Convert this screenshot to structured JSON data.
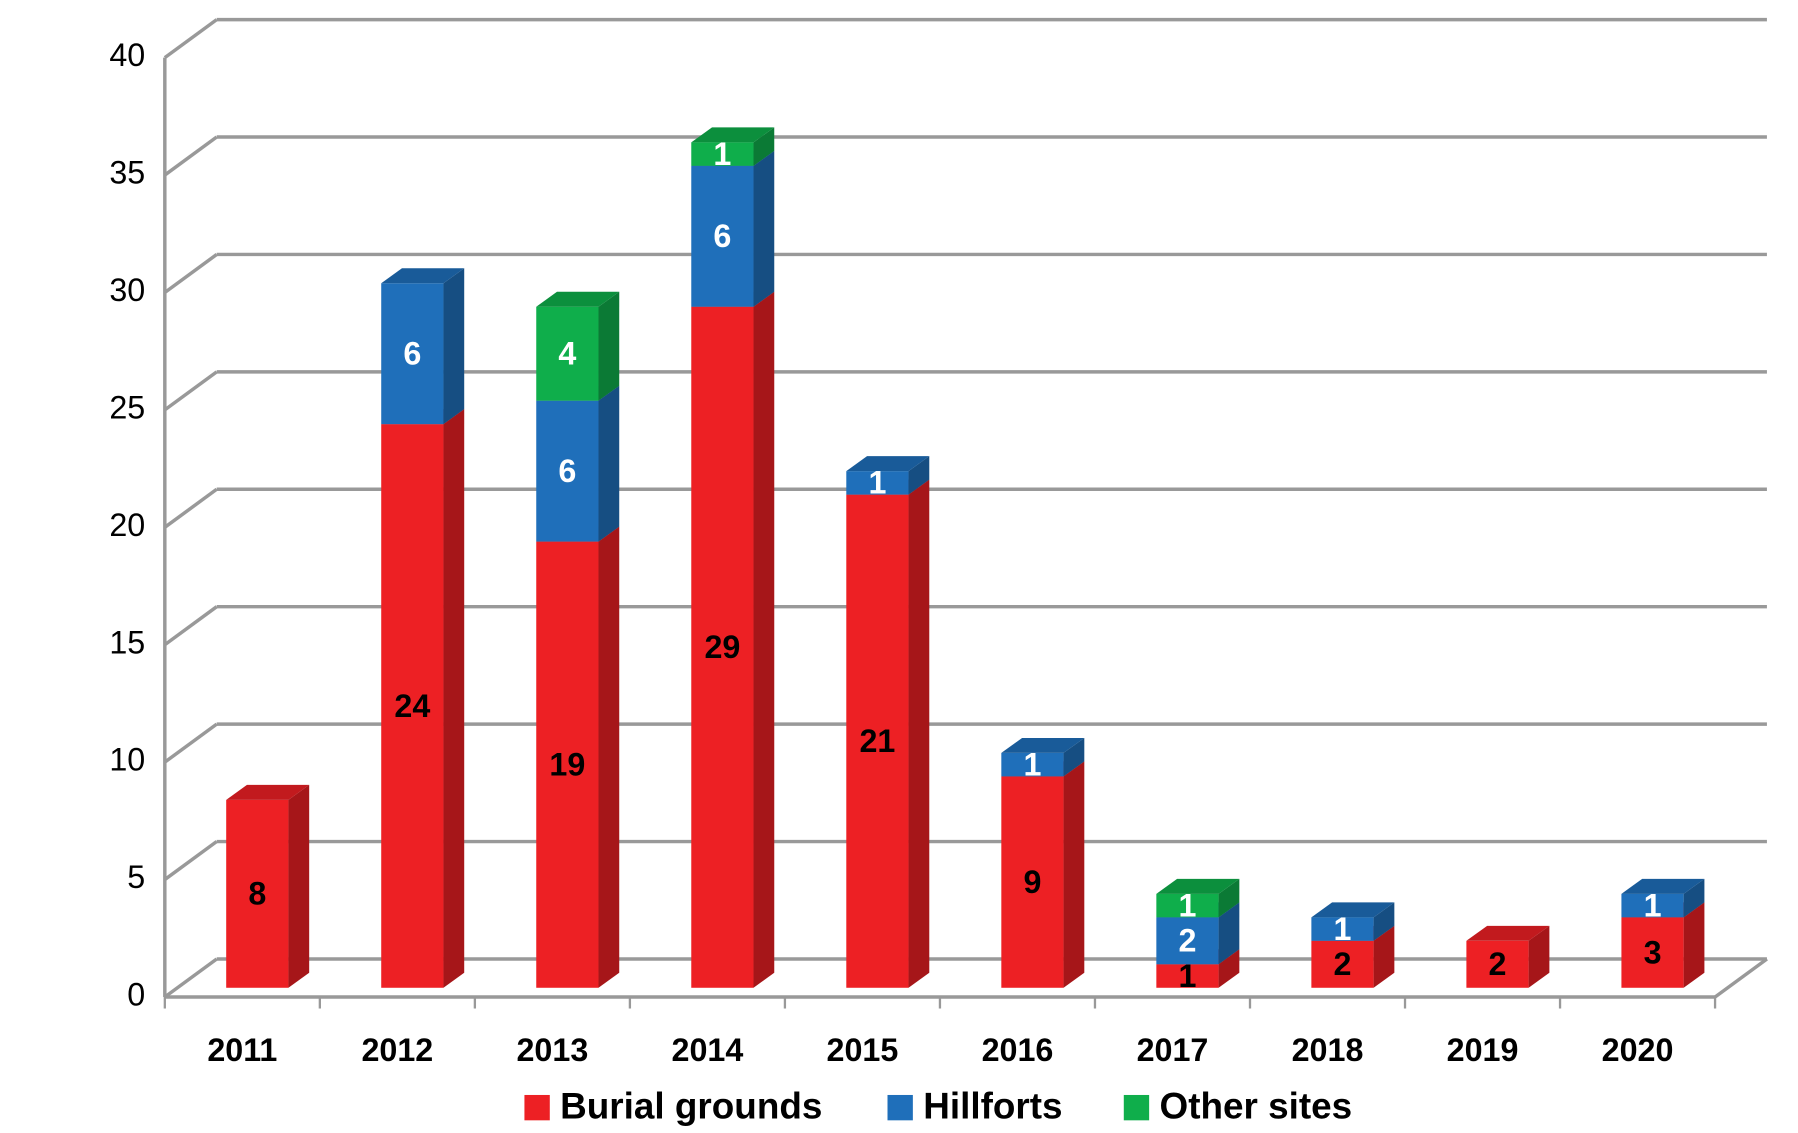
{
  "chart_data": {
    "type": "bar3d_stacked",
    "categories": [
      "2011",
      "2012",
      "2013",
      "2014",
      "2015",
      "2016",
      "2017",
      "2018",
      "2019",
      "2020"
    ],
    "series": [
      {
        "name": "Burial grounds",
        "color": "#ed2024",
        "values": [
          8,
          24,
          19,
          29,
          21,
          9,
          1,
          2,
          2,
          3
        ]
      },
      {
        "name": "Hillforts",
        "color": "#1f6fba",
        "values": [
          null,
          6,
          6,
          6,
          1,
          1,
          2,
          1,
          null,
          1
        ]
      },
      {
        "name": "Other sites",
        "color": "#0fae4b",
        "values": [
          null,
          null,
          4,
          1,
          null,
          null,
          1,
          null,
          null,
          null
        ]
      }
    ],
    "ylim": [
      0,
      40
    ],
    "yticks": [
      0,
      5,
      10,
      15,
      20,
      25,
      30,
      35,
      40
    ],
    "grid": true,
    "legend": "bottom"
  }
}
